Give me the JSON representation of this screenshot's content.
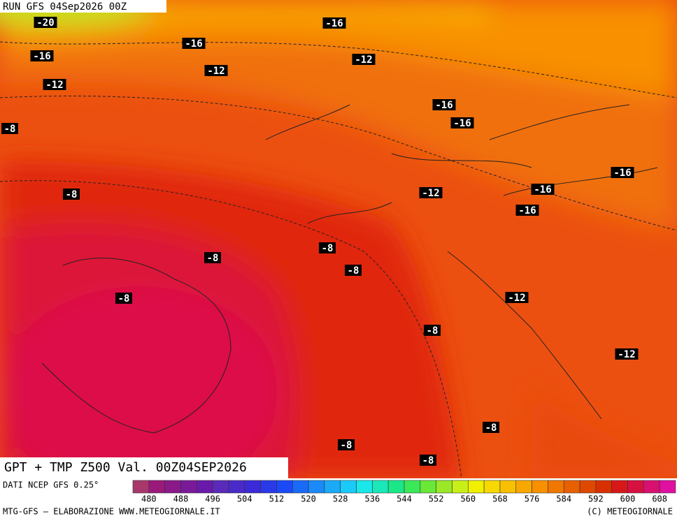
{
  "header": {
    "run": "RUN GFS 04Sep2026 00Z"
  },
  "map": {
    "title": "GPT + TMP Z500 Val. 00Z04SEP2026",
    "contour_labels": [
      -20,
      -16,
      -16,
      -16,
      -12,
      -12,
      -12,
      -8,
      -16,
      -16,
      -16,
      -16,
      -12,
      -16,
      -8,
      -8,
      -8,
      -8,
      -8,
      -12,
      -8,
      -12,
      -8,
      -8,
      -8
    ]
  },
  "legend": {
    "source": "DATI NCEP GFS 0.25°",
    "colors": [
      "#a8386c",
      "#9a1a7a",
      "#8a1a8a",
      "#7a1a9a",
      "#6a1aaa",
      "#5a2ab8",
      "#4a2ac8",
      "#3a2ad8",
      "#2a3ae8",
      "#1a4af8",
      "#1a6af8",
      "#1a8af8",
      "#1aaaf8",
      "#1acaf8",
      "#1ae8e8",
      "#1ae8b8",
      "#1ae888",
      "#3ae858",
      "#6ae838",
      "#9ae828",
      "#c8f018",
      "#f0f000",
      "#f8d800",
      "#f8c000",
      "#f8a800",
      "#f89000",
      "#f07800",
      "#e86000",
      "#e04800",
      "#d83000",
      "#d81818",
      "#d81040",
      "#d81070",
      "#e010a0"
    ],
    "ticks": [
      480,
      488,
      496,
      504,
      512,
      520,
      528,
      536,
      544,
      552,
      560,
      568,
      576,
      584,
      592,
      600,
      608
    ]
  },
  "footer": {
    "left": "MTG-GFS — ELABORAZIONE WWW.METEOGIORNALE.IT",
    "right": "(C) METEOGIORNALE"
  }
}
